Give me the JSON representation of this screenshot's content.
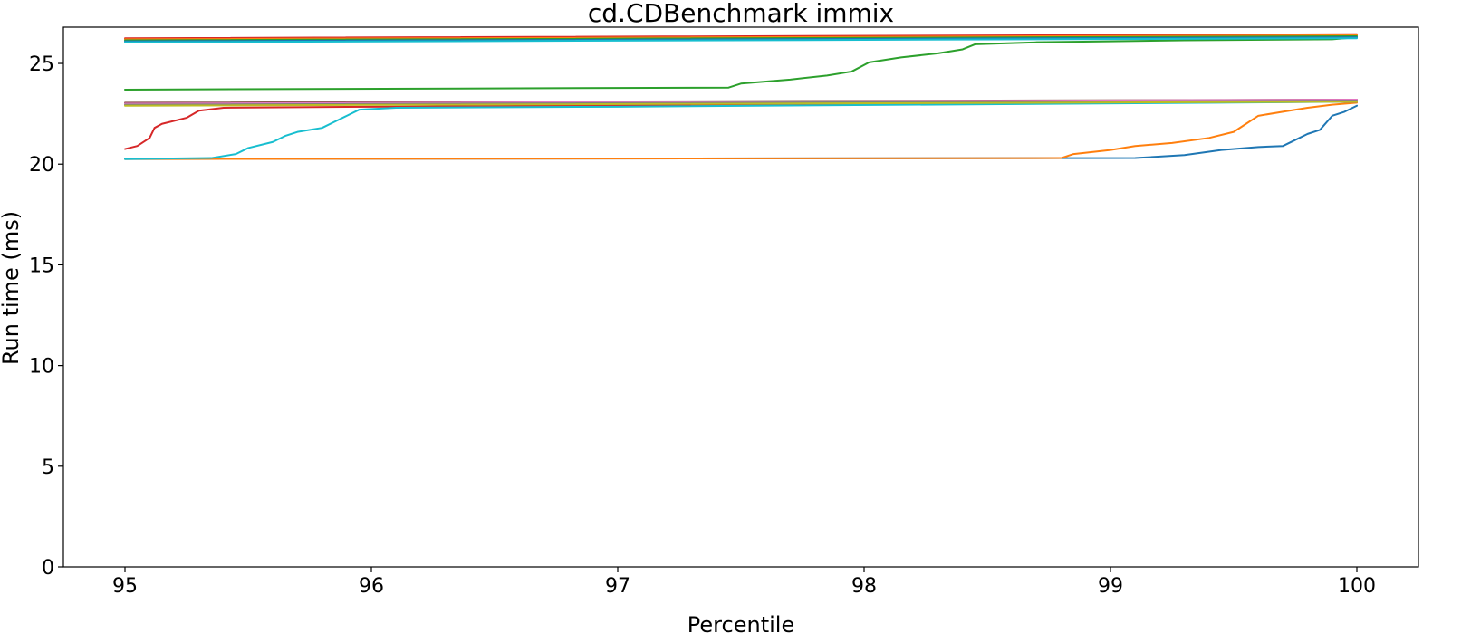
{
  "chart_data": {
    "type": "line",
    "title": "cd.CDBenchmark immix",
    "xlabel": "Percentile",
    "ylabel": "Run time (ms)",
    "xlim": [
      94.75,
      100.25
    ],
    "ylim": [
      0,
      26.8
    ],
    "xticks": [
      95,
      96,
      97,
      98,
      99,
      100
    ],
    "yticks": [
      0,
      5,
      10,
      15,
      20,
      25
    ],
    "grid": false,
    "legend": "none",
    "series": [
      {
        "color": "#1f77b4",
        "x": [
          95,
          99.1,
          99.3,
          99.45,
          99.6,
          99.7,
          99.75,
          99.8,
          99.85,
          99.9,
          99.95,
          100
        ],
        "y": [
          20.25,
          20.3,
          20.45,
          20.7,
          20.85,
          20.9,
          21.2,
          21.5,
          21.7,
          22.4,
          22.6,
          22.9
        ]
      },
      {
        "color": "#ff7f0e",
        "x": [
          95,
          98.8,
          98.85,
          99.0,
          99.1,
          99.25,
          99.4,
          99.5,
          99.55,
          99.6,
          99.7,
          99.8,
          99.9,
          100
        ],
        "y": [
          20.25,
          20.3,
          20.5,
          20.7,
          20.9,
          21.05,
          21.3,
          21.6,
          22.0,
          22.4,
          22.6,
          22.8,
          22.95,
          23.05
        ]
      },
      {
        "color": "#2ca02c",
        "x": [
          95,
          97.45,
          97.5,
          97.7,
          97.85,
          97.95,
          98.02,
          98.15,
          98.3,
          98.4,
          98.45,
          98.7,
          99.0,
          99.3,
          99.9,
          100
        ],
        "y": [
          23.7,
          23.8,
          24.0,
          24.2,
          24.4,
          24.6,
          25.05,
          25.3,
          25.5,
          25.7,
          25.95,
          26.05,
          26.1,
          26.15,
          26.2,
          26.3
        ]
      },
      {
        "color": "#d62728",
        "x": [
          95,
          95.05,
          95.1,
          95.12,
          95.15,
          95.25,
          95.3,
          95.4,
          96.0,
          100
        ],
        "y": [
          20.75,
          20.9,
          21.3,
          21.8,
          22.0,
          22.3,
          22.65,
          22.8,
          22.85,
          23.1
        ]
      },
      {
        "color": "#17becf",
        "x": [
          95,
          95.35,
          95.45,
          95.5,
          95.6,
          95.65,
          95.7,
          95.8,
          95.85,
          95.9,
          95.95,
          96.1,
          97.0,
          100
        ],
        "y": [
          20.25,
          20.3,
          20.5,
          20.8,
          21.1,
          21.4,
          21.6,
          21.8,
          22.1,
          22.4,
          22.7,
          22.8,
          22.85,
          23.1
        ]
      },
      {
        "color": "#8c564b",
        "x": [
          95,
          100
        ],
        "y": [
          23.05,
          23.2
        ]
      },
      {
        "color": "#e377c2",
        "x": [
          95,
          100
        ],
        "y": [
          23.0,
          23.2
        ]
      },
      {
        "color": "#7f7f7f",
        "x": [
          95,
          100
        ],
        "y": [
          22.95,
          23.15
        ]
      },
      {
        "color": "#bcbd22",
        "x": [
          95,
          100
        ],
        "y": [
          22.9,
          23.1
        ]
      },
      {
        "color": "#d62728",
        "x": [
          95,
          100
        ],
        "y": [
          26.25,
          26.45
        ]
      },
      {
        "color": "#ff7f0e",
        "x": [
          95,
          100
        ],
        "y": [
          26.2,
          26.4
        ]
      },
      {
        "color": "#2ca02c",
        "x": [
          95,
          100
        ],
        "y": [
          26.15,
          26.35
        ]
      },
      {
        "color": "#1f77b4",
        "x": [
          95,
          100
        ],
        "y": [
          26.1,
          26.3
        ]
      },
      {
        "color": "#17becf",
        "x": [
          95,
          100
        ],
        "y": [
          26.05,
          26.25
        ]
      }
    ]
  }
}
